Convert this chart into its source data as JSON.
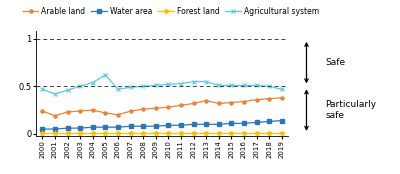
{
  "years": [
    2000,
    2001,
    2002,
    2003,
    2004,
    2005,
    2006,
    2007,
    2008,
    2009,
    2010,
    2011,
    2012,
    2013,
    2014,
    2015,
    2016,
    2017,
    2018,
    2019
  ],
  "arable_land": [
    0.24,
    0.19,
    0.23,
    0.24,
    0.25,
    0.22,
    0.2,
    0.24,
    0.26,
    0.27,
    0.28,
    0.3,
    0.32,
    0.35,
    0.32,
    0.33,
    0.34,
    0.36,
    0.37,
    0.38
  ],
  "water_area": [
    0.05,
    0.05,
    0.06,
    0.06,
    0.07,
    0.07,
    0.07,
    0.08,
    0.08,
    0.08,
    0.09,
    0.09,
    0.1,
    0.1,
    0.1,
    0.11,
    0.11,
    0.12,
    0.13,
    0.14
  ],
  "forest_land": [
    0.01,
    0.01,
    0.01,
    0.01,
    0.01,
    0.01,
    0.01,
    0.01,
    0.01,
    0.01,
    0.01,
    0.01,
    0.01,
    0.01,
    0.01,
    0.01,
    0.01,
    0.01,
    0.01,
    0.01
  ],
  "agri_system": [
    0.47,
    0.42,
    0.46,
    0.5,
    0.54,
    0.62,
    0.47,
    0.49,
    0.5,
    0.51,
    0.52,
    0.53,
    0.55,
    0.55,
    0.51,
    0.51,
    0.51,
    0.51,
    0.5,
    0.47
  ],
  "arable_color": "#E8833A",
  "water_color": "#2E75B6",
  "forest_color": "#FFC000",
  "agri_color": "#5BC8E8",
  "hline_color": "#404040",
  "bg_color": "#ffffff",
  "legend_labels": [
    "Arable land",
    "Water area",
    "Forest land",
    "Agricultural system"
  ],
  "ylabel_vals": [
    0,
    0.5,
    1
  ],
  "ylim": [
    -0.02,
    1.08
  ],
  "safe_label": "Safe",
  "particularly_safe_label": "Particularly\nsafe"
}
